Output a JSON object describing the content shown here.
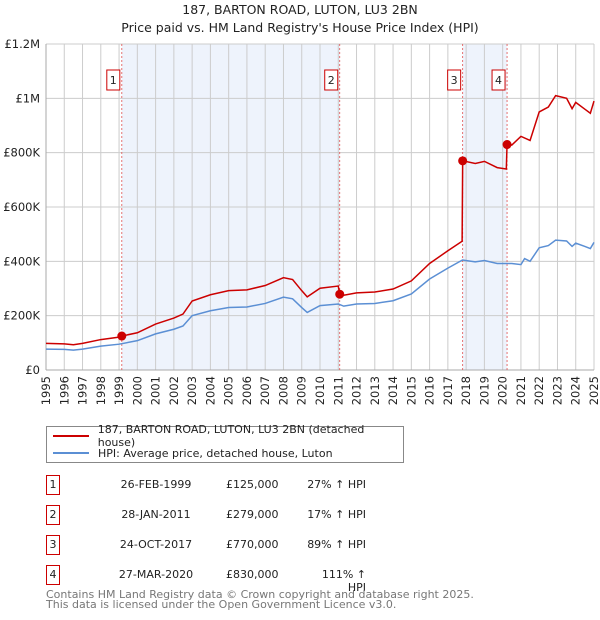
{
  "chart_data": {
    "type": "line",
    "title": "187, BARTON ROAD, LUTON, LU3 2BN",
    "subtitle": "Price paid vs. HM Land Registry's House Price Index (HPI)",
    "xlim": [
      1995,
      2025
    ],
    "ylim": [
      0,
      1200000
    ],
    "y_ticks": [
      0,
      200000,
      400000,
      600000,
      800000,
      1000000,
      1200000
    ],
    "y_tick_labels": [
      "£0",
      "£200K",
      "£400K",
      "£600K",
      "£800K",
      "£1M",
      "£1.2M"
    ],
    "x_tick_labels": [
      "1995",
      "1996",
      "1997",
      "1998",
      "1999",
      "2000",
      "2001",
      "2002",
      "2003",
      "2004",
      "2005",
      "2006",
      "2007",
      "2008",
      "2009",
      "2010",
      "2011",
      "2012",
      "2013",
      "2014",
      "2015",
      "2016",
      "2017",
      "2018",
      "2019",
      "2020",
      "2021",
      "2022",
      "2023",
      "2024",
      "2025"
    ],
    "grid": true,
    "shaded_ranges": [
      [
        1999.15,
        2011.08
      ],
      [
        2017.81,
        2020.24
      ]
    ],
    "series": [
      {
        "name": "187, BARTON ROAD, LUTON, LU3 2BN (detached house)",
        "color": "#cc0000",
        "x": [
          1995,
          1996,
          1996.5,
          1997,
          1998,
          1999,
          1999.15,
          2000,
          2001,
          2002,
          2002.5,
          2003,
          2004,
          2005,
          2006,
          2007,
          2008,
          2008.5,
          2009,
          2009.3,
          2010,
          2011,
          2011.08,
          2011.3,
          2012,
          2013,
          2014,
          2015,
          2016,
          2017,
          2017.78,
          2017.81,
          2018.5,
          2019,
          2019.7,
          2020.2,
          2020.24,
          2020.5,
          2021,
          2021.5,
          2022,
          2022.5,
          2022.9,
          2023.5,
          2023.8,
          2024,
          2024.5,
          2024.8,
          2025
        ],
        "y": [
          98000,
          96000,
          93000,
          98000,
          112000,
          121000,
          125000,
          137000,
          169000,
          191000,
          206000,
          254000,
          277000,
          292000,
          295000,
          311000,
          340000,
          333000,
          292000,
          269000,
          301000,
          309000,
          279000,
          275000,
          284000,
          287000,
          298000,
          328000,
          392000,
          439000,
          474000,
          770000,
          760000,
          768000,
          745000,
          740000,
          830000,
          828000,
          860000,
          845000,
          950000,
          968000,
          1010000,
          1000000,
          962000,
          985000,
          960000,
          945000,
          990000
        ]
      },
      {
        "name": "HPI: Average price, detached house, Luton",
        "color": "#5b8fd4",
        "x": [
          1995,
          1996,
          1996.5,
          1997,
          1998,
          1999,
          2000,
          2001,
          2002,
          2002.5,
          2003,
          2004,
          2005,
          2006,
          2007,
          2008,
          2008.5,
          2009,
          2009.3,
          2010,
          2011,
          2011.3,
          2012,
          2013,
          2014,
          2015,
          2016,
          2017,
          2017.8,
          2018.5,
          2019,
          2019.7,
          2020.5,
          2021,
          2021.2,
          2021.5,
          2022,
          2022.5,
          2022.9,
          2023.5,
          2023.8,
          2024,
          2024.5,
          2024.8,
          2025
        ],
        "y": [
          77000,
          76000,
          73000,
          77000,
          88000,
          95000,
          108000,
          133000,
          150000,
          162000,
          200000,
          218000,
          230000,
          232000,
          245000,
          268000,
          262000,
          230000,
          212000,
          237000,
          243000,
          235000,
          243000,
          245000,
          255000,
          280000,
          335000,
          375000,
          405000,
          398000,
          403000,
          392000,
          392000,
          388000,
          410000,
          400000,
          450000,
          458000,
          478000,
          475000,
          455000,
          467000,
          455000,
          447000,
          470000
        ]
      }
    ],
    "sales": [
      {
        "label": "1",
        "date": "26-FEB-1999",
        "x": 1999.15,
        "price": "£125,000",
        "value": 125000,
        "hpi": "27% ↑ HPI"
      },
      {
        "label": "2",
        "date": "28-JAN-2011",
        "x": 2011.08,
        "price": "£279,000",
        "value": 279000,
        "hpi": "17% ↑ HPI"
      },
      {
        "label": "3",
        "date": "24-OCT-2017",
        "x": 2017.81,
        "price": "£770,000",
        "value": 770000,
        "hpi": "89% ↑ HPI"
      },
      {
        "label": "4",
        "date": "27-MAR-2020",
        "x": 2020.24,
        "price": "£830,000",
        "value": 830000,
        "hpi": "111% ↑ HPI"
      }
    ]
  },
  "footer": [
    "Contains HM Land Registry data © Crown copyright and database right 2025.",
    "This data is licensed under the Open Government Licence v3.0."
  ]
}
